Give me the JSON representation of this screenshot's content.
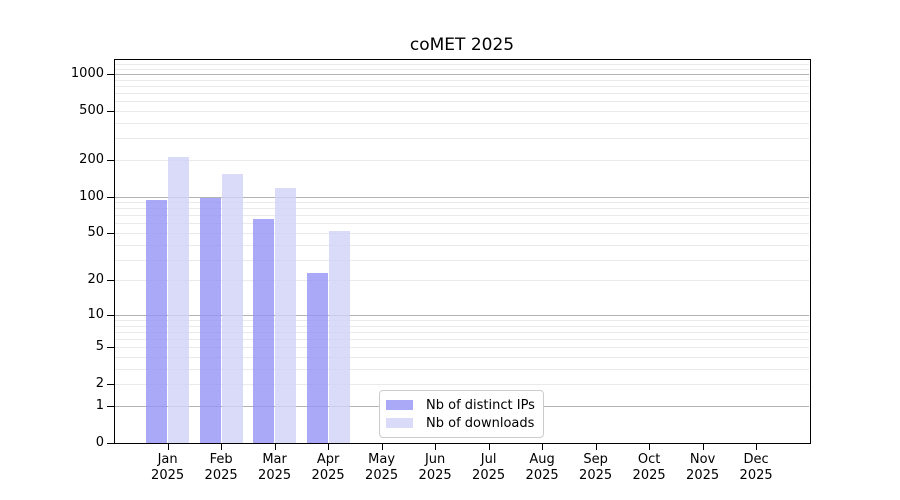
{
  "figure": {
    "background": "#ffffff"
  },
  "chart_data": {
    "type": "bar",
    "title": "coMET 2025",
    "categories": [
      "Jan",
      "Feb",
      "Mar",
      "Apr",
      "May",
      "Jun",
      "Jul",
      "Aug",
      "Sep",
      "Oct",
      "Nov",
      "Dec"
    ],
    "x_year_label": "2025",
    "series": [
      {
        "name": "Nb of distinct IPs",
        "color": "#a9a9f7",
        "fill": "rgba(148,148,245,0.8)",
        "values": [
          93,
          97,
          65,
          23,
          0,
          0,
          0,
          0,
          0,
          0,
          0,
          0
        ]
      },
      {
        "name": "Nb of downloads",
        "color": "#dadaf9",
        "fill": "rgba(209,209,248,0.8)",
        "values": [
          212,
          152,
          117,
          52,
          0,
          0,
          0,
          0,
          0,
          0,
          0,
          0
        ]
      }
    ],
    "y_axis": {
      "scale": "log10(1+y)",
      "tick_values": [
        1000,
        500,
        200,
        100,
        50,
        20,
        10,
        5,
        2,
        1,
        0
      ],
      "ylim": [
        0,
        1320
      ]
    },
    "xlabel": "",
    "ylabel": "",
    "grid": {
      "major_color": "#b3b3b3",
      "minor_color": "#eaeaea"
    },
    "legend": {
      "position": "lower center",
      "border_color": "#cccccc"
    }
  }
}
